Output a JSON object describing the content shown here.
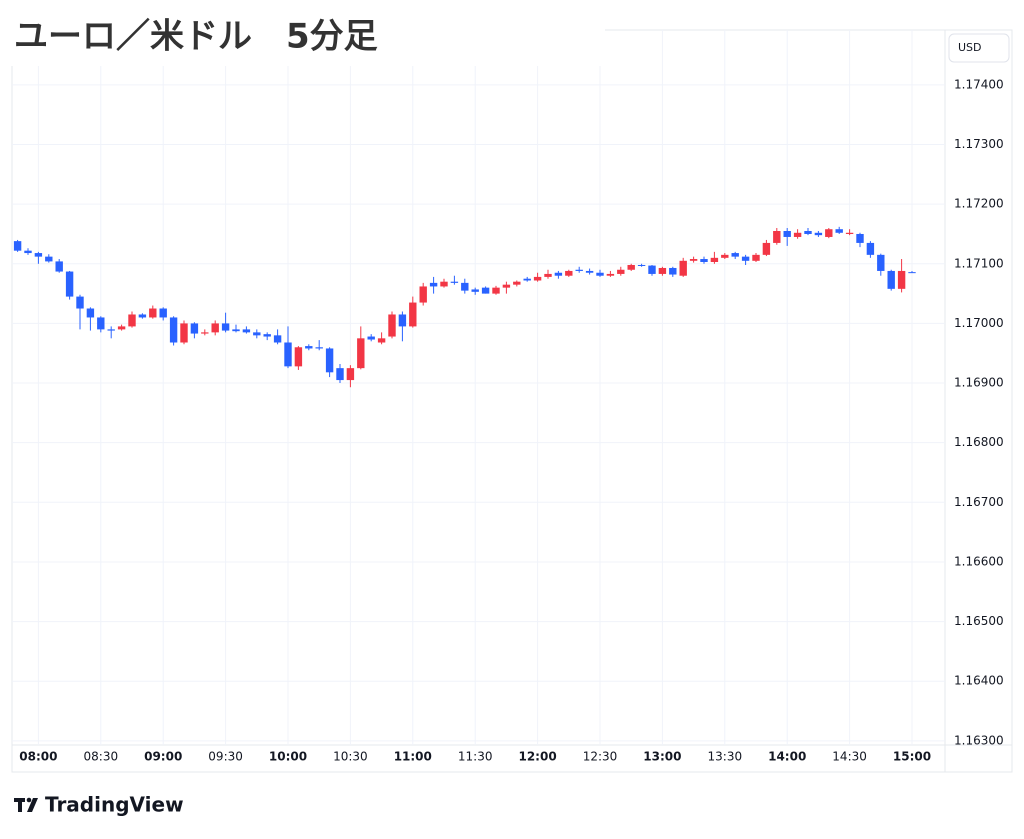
{
  "chart_data": {
    "type": "candlestick",
    "title": "ユーロ／米ドル　5分足",
    "currency": "USD",
    "brand": "TradingView",
    "up_color": "#f23645",
    "down_color": "#2962ff",
    "grid": true,
    "x": [
      "07:50",
      "07:55",
      "08:00",
      "08:05",
      "08:10",
      "08:15",
      "08:20",
      "08:25",
      "08:30",
      "08:35",
      "08:40",
      "08:45",
      "08:50",
      "08:55",
      "09:00",
      "09:05",
      "09:10",
      "09:15",
      "09:20",
      "09:25",
      "09:30",
      "09:35",
      "09:40",
      "09:45",
      "09:50",
      "09:55",
      "10:00",
      "10:05",
      "10:10",
      "10:15",
      "10:20",
      "10:25",
      "10:30",
      "10:35",
      "10:40",
      "10:45",
      "10:50",
      "10:55",
      "11:00",
      "11:05",
      "11:10",
      "11:15",
      "11:20",
      "11:25",
      "11:30",
      "11:35",
      "11:40",
      "11:45",
      "11:50",
      "11:55",
      "12:00",
      "12:05",
      "12:10",
      "12:15",
      "12:20",
      "12:25",
      "12:30",
      "12:35",
      "12:40",
      "12:45",
      "12:50",
      "12:55",
      "13:00",
      "13:05",
      "13:10",
      "13:15",
      "13:20",
      "13:25",
      "13:30",
      "13:35",
      "13:40",
      "13:45",
      "13:50",
      "13:55",
      "14:00",
      "14:05",
      "14:10",
      "14:15",
      "14:20",
      "14:25",
      "14:30",
      "14:35",
      "14:40",
      "14:45",
      "14:50",
      "14:55",
      "15:00"
    ],
    "open": [
      1.17138,
      1.17122,
      1.17118,
      1.17112,
      1.17104,
      1.17087,
      1.17045,
      1.17025,
      1.1701,
      1.1699,
      1.1699,
      1.16995,
      1.17015,
      1.1701,
      1.17025,
      1.1701,
      1.16968,
      1.17,
      1.16983,
      1.16985,
      1.17,
      1.1699,
      1.1699,
      1.16985,
      1.16982,
      1.1698,
      1.16968,
      1.16928,
      1.16962,
      1.1696,
      1.16958,
      1.16925,
      1.16905,
      1.16925,
      1.16978,
      1.16968,
      1.16978,
      1.17015,
      1.16995,
      1.17035,
      1.17068,
      1.17062,
      1.1707,
      1.17068,
      1.17057,
      1.1706,
      1.1705,
      1.1706,
      1.17065,
      1.17075,
      1.17072,
      1.17078,
      1.17085,
      1.1708,
      1.1709,
      1.17088,
      1.17085,
      1.1708,
      1.17083,
      1.1709,
      1.17098,
      1.17097,
      1.17083,
      1.17093,
      1.1708,
      1.17105,
      1.17108,
      1.17103,
      1.1711,
      1.17118,
      1.17112,
      1.17105,
      1.17115,
      1.17135,
      1.17155,
      1.17145,
      1.17155,
      1.17152,
      1.17145,
      1.17158,
      1.1715,
      1.1715,
      1.17135,
      1.17115,
      1.17088,
      1.17058,
      1.17086
    ],
    "high": [
      1.1714,
      1.17126,
      1.1712,
      1.17116,
      1.17108,
      1.17088,
      1.17048,
      1.17027,
      1.17012,
      1.16995,
      1.16998,
      1.1702,
      1.17017,
      1.1703,
      1.17027,
      1.17012,
      1.17005,
      1.17002,
      1.1699,
      1.17005,
      1.17018,
      1.16998,
      1.16995,
      1.1699,
      1.16985,
      1.1699,
      1.16995,
      1.16962,
      1.16965,
      1.16972,
      1.1696,
      1.16932,
      1.1693,
      1.16995,
      1.16982,
      1.16985,
      1.1702,
      1.1702,
      1.17045,
      1.17068,
      1.17078,
      1.17075,
      1.1708,
      1.17075,
      1.1706,
      1.17062,
      1.17063,
      1.1707,
      1.17072,
      1.17078,
      1.17085,
      1.1709,
      1.17088,
      1.1709,
      1.17095,
      1.17092,
      1.1709,
      1.17088,
      1.17095,
      1.171,
      1.171,
      1.17098,
      1.17095,
      1.17095,
      1.1711,
      1.17112,
      1.17112,
      1.1712,
      1.17118,
      1.1712,
      1.17115,
      1.17118,
      1.1714,
      1.1716,
      1.1716,
      1.17158,
      1.1716,
      1.17155,
      1.1716,
      1.17162,
      1.17158,
      1.17152,
      1.17138,
      1.17117,
      1.1709,
      1.17108,
      1.17088
    ],
    "low": [
      1.1712,
      1.17115,
      1.171,
      1.17102,
      1.17085,
      1.1704,
      1.1699,
      1.16988,
      1.16985,
      1.16975,
      1.16988,
      1.16993,
      1.17008,
      1.17008,
      1.17005,
      1.16963,
      1.16965,
      1.16975,
      1.1698,
      1.1698,
      1.16985,
      1.16985,
      1.16983,
      1.16975,
      1.16972,
      1.16965,
      1.16925,
      1.16922,
      1.16955,
      1.16955,
      1.1691,
      1.169,
      1.16893,
      1.16923,
      1.1697,
      1.16965,
      1.16975,
      1.1697,
      1.16993,
      1.1703,
      1.1705,
      1.1706,
      1.17065,
      1.1705,
      1.17048,
      1.1705,
      1.17048,
      1.1705,
      1.17062,
      1.1707,
      1.1707,
      1.17075,
      1.17075,
      1.17078,
      1.17085,
      1.17082,
      1.17078,
      1.17078,
      1.1708,
      1.17088,
      1.17095,
      1.1708,
      1.1708,
      1.17078,
      1.17078,
      1.17102,
      1.171,
      1.171,
      1.17108,
      1.17108,
      1.17098,
      1.17103,
      1.17113,
      1.17132,
      1.1713,
      1.17142,
      1.17148,
      1.17145,
      1.17143,
      1.1715,
      1.17148,
      1.17128,
      1.1711,
      1.1708,
      1.17055,
      1.17052,
      1.17085
    ],
    "close": [
      1.17122,
      1.17118,
      1.17112,
      1.17104,
      1.17087,
      1.17045,
      1.17025,
      1.1701,
      1.1699,
      1.16988,
      1.16995,
      1.17015,
      1.1701,
      1.17025,
      1.1701,
      1.16968,
      1.17,
      1.16983,
      1.16985,
      1.17,
      1.16988,
      1.16987,
      1.16985,
      1.1698,
      1.16978,
      1.16968,
      1.16928,
      1.1696,
      1.16958,
      1.16958,
      1.16918,
      1.16905,
      1.16925,
      1.16975,
      1.16973,
      1.16975,
      1.17015,
      1.16995,
      1.17035,
      1.17062,
      1.17062,
      1.1707,
      1.17068,
      1.17055,
      1.17053,
      1.1705,
      1.1706,
      1.17065,
      1.1707,
      1.17072,
      1.17078,
      1.17083,
      1.1708,
      1.17088,
      1.17088,
      1.17085,
      1.1708,
      1.17083,
      1.1709,
      1.17098,
      1.17097,
      1.17083,
      1.17093,
      1.17082,
      1.17105,
      1.17108,
      1.17103,
      1.1711,
      1.17115,
      1.17112,
      1.17105,
      1.17115,
      1.17135,
      1.17155,
      1.17145,
      1.17152,
      1.1715,
      1.17148,
      1.17158,
      1.17152,
      1.17152,
      1.17135,
      1.17115,
      1.17088,
      1.17058,
      1.17088,
      1.17085
    ],
    "xticks": [
      "08:00",
      "08:30",
      "09:00",
      "09:30",
      "10:00",
      "10:30",
      "11:00",
      "11:30",
      "12:00",
      "12:30",
      "13:00",
      "13:30",
      "14:00",
      "14:30",
      "15:00"
    ],
    "ylim": [
      1.16293,
      1.17425
    ],
    "yticks": [
      {
        "value": 1.174,
        "label": "1.17400"
      },
      {
        "value": 1.173,
        "label": "1.17300"
      },
      {
        "value": 1.172,
        "label": "1.17200"
      },
      {
        "value": 1.171,
        "label": "1.17100"
      },
      {
        "value": 1.17,
        "label": "1.17000"
      },
      {
        "value": 1.169,
        "label": "1.16900"
      },
      {
        "value": 1.168,
        "label": "1.16800"
      },
      {
        "value": 1.167,
        "label": "1.16700"
      },
      {
        "value": 1.166,
        "label": "1.16600"
      },
      {
        "value": 1.165,
        "label": "1.16500"
      },
      {
        "value": 1.164,
        "label": "1.16400"
      },
      {
        "value": 1.163,
        "label": "1.16300"
      }
    ]
  }
}
